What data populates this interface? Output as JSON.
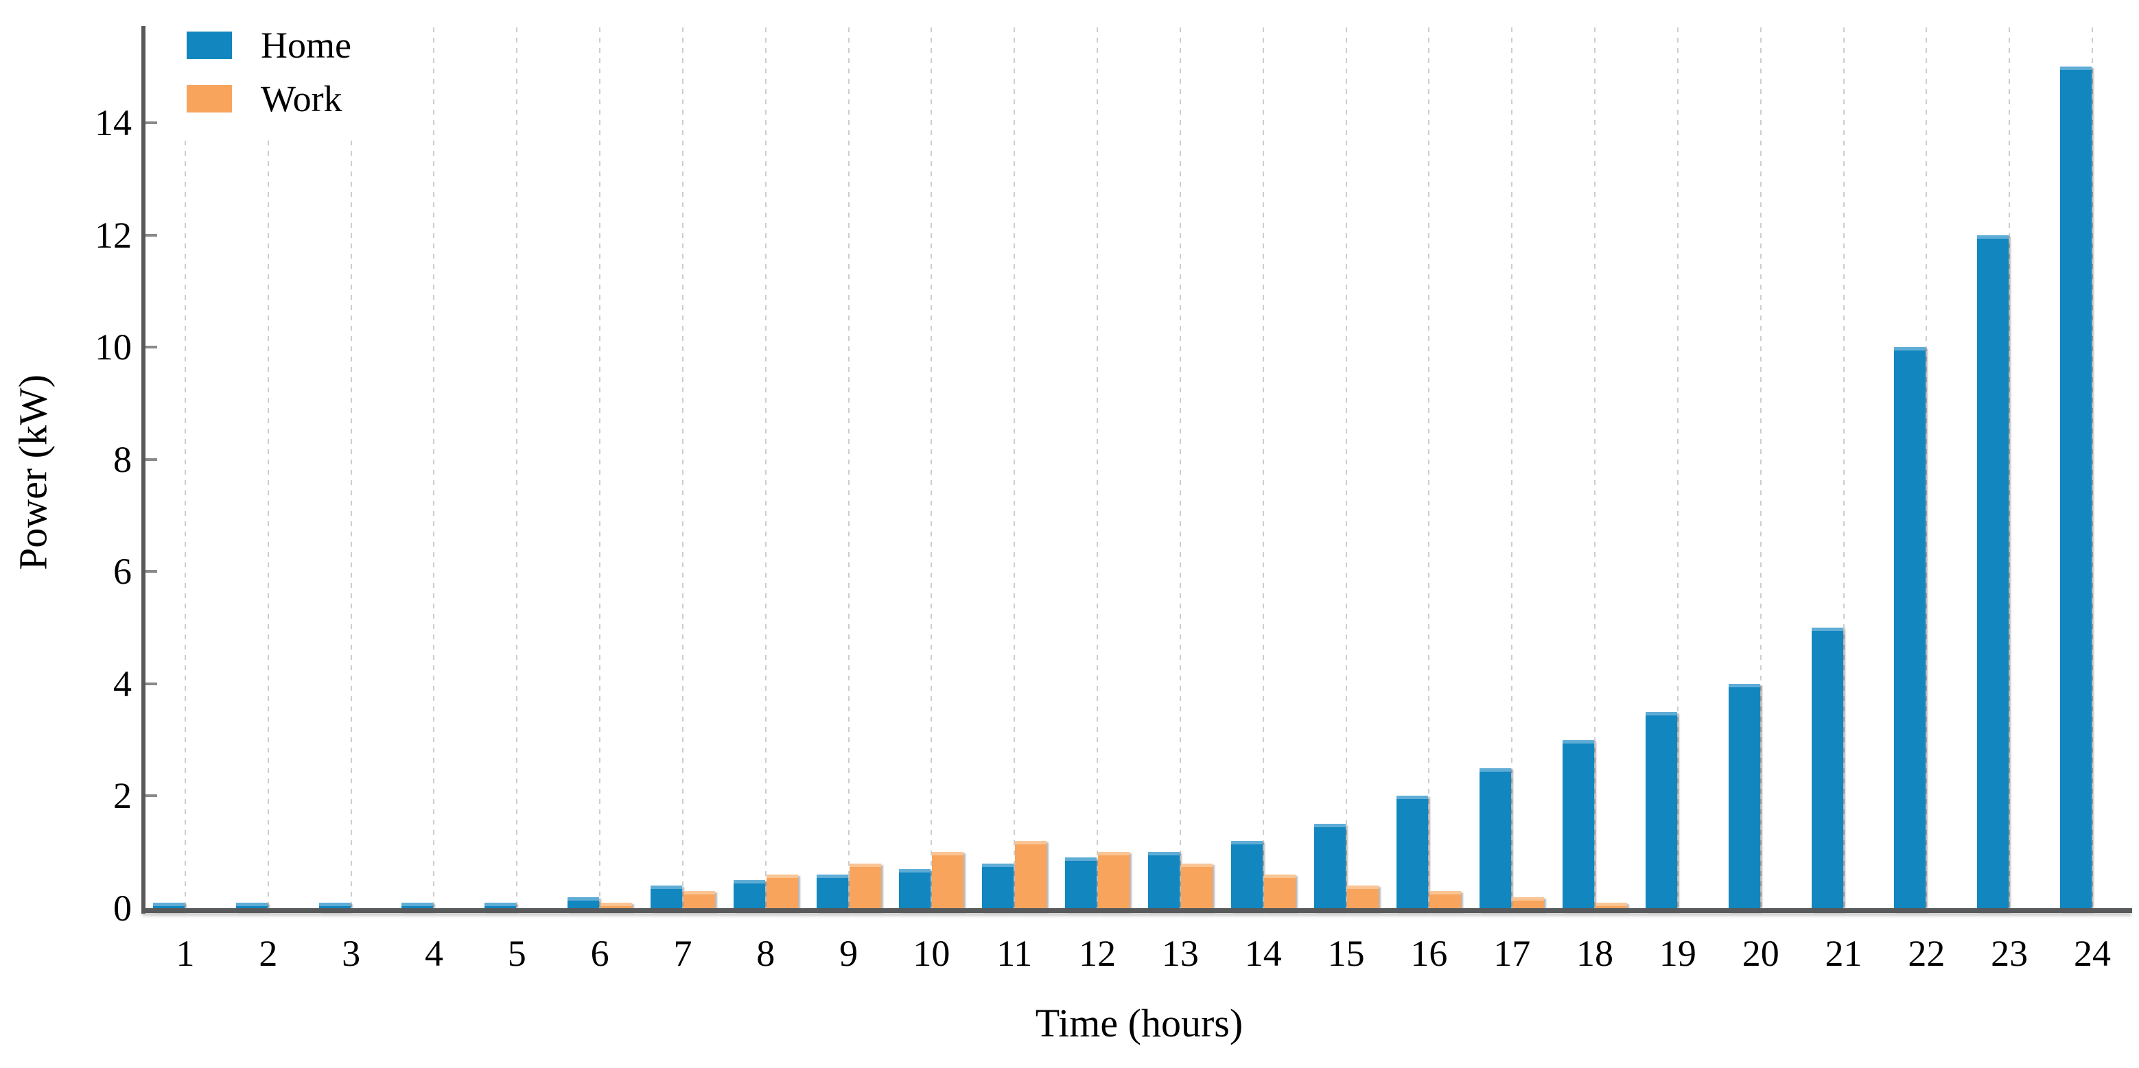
{
  "chart_data": {
    "type": "bar",
    "title": "",
    "xlabel": "Time (hours)",
    "ylabel": "Power (kW)",
    "categories": [
      1,
      2,
      3,
      4,
      5,
      6,
      7,
      8,
      9,
      10,
      11,
      12,
      13,
      14,
      15,
      16,
      17,
      18,
      19,
      20,
      21,
      22,
      23,
      24
    ],
    "series": [
      {
        "name": "Home",
        "color": "#1186bf",
        "values": [
          0.1,
          0.1,
          0.1,
          0.1,
          0.1,
          0.2,
          0.4,
          0.5,
          0.6,
          0.7,
          0.8,
          0.9,
          1.0,
          1.2,
          1.5,
          2.0,
          2.5,
          3.0,
          3.5,
          4.0,
          5.0,
          10.0,
          12.0,
          15.0
        ]
      },
      {
        "name": "Work",
        "color": "#f8a45c",
        "values": [
          0,
          0,
          0,
          0,
          0,
          0.1,
          0.3,
          0.6,
          0.8,
          1.0,
          1.2,
          1.0,
          0.8,
          0.6,
          0.4,
          0.3,
          0.2,
          0.1,
          0,
          0,
          0,
          0,
          0,
          0
        ]
      }
    ],
    "ylim": [
      0,
      15.7
    ],
    "yticks": [
      0,
      2,
      4,
      6,
      8,
      10,
      12,
      14
    ],
    "grid": "vertical-dotted",
    "legend_position": "top-left",
    "accent_colors": {
      "home_blue": "#1186bf",
      "work_orange": "#f8a45c",
      "spine_gray": "#58595b",
      "grid_gray": "#cdcdcd"
    }
  }
}
